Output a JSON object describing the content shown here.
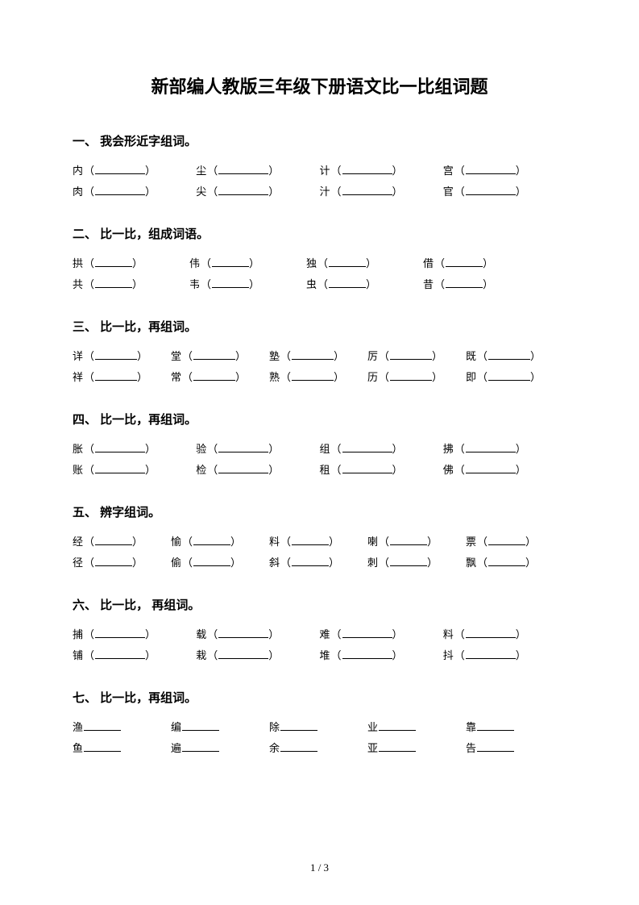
{
  "title": "新部编人教版三年级下册语文比一比组词题",
  "footer": "1 / 3",
  "blank_border_color": "#000000",
  "text_color": "#000000",
  "background_color": "#ffffff",
  "title_fontsize": 22,
  "body_fontsize": 13,
  "head_fontsize": 15,
  "sections": [
    {
      "head": "一、 我会形近字组词。",
      "cls": "s1",
      "blank": "blank-w1",
      "paren": true,
      "rows": [
        [
          "内",
          "尘",
          "计",
          "宫"
        ],
        [
          "肉",
          "尖",
          "汁",
          "官"
        ]
      ]
    },
    {
      "head": "二、 比一比，组成词语。",
      "cls": "s2",
      "blank": "blank-w2",
      "paren": true,
      "rows": [
        [
          "拱",
          "伟",
          "独",
          "借"
        ],
        [
          "共",
          "韦",
          "虫",
          "昔"
        ]
      ]
    },
    {
      "head": "三、 比一比，再组词。",
      "cls": "s3",
      "blank": "blank-w3",
      "paren": true,
      "rows": [
        [
          "详",
          "堂",
          "塾",
          "厉",
          "既"
        ],
        [
          "祥",
          "常",
          "熟",
          "历",
          "即"
        ]
      ]
    },
    {
      "head": "四、 比一比，再组词。",
      "cls": "s4",
      "blank": "blank-w4",
      "paren": true,
      "rows": [
        [
          "胀",
          "验",
          "组",
          "拂"
        ],
        [
          "账",
          "检",
          "租",
          "佛"
        ]
      ]
    },
    {
      "head": "五、 辨字组词。",
      "cls": "s5",
      "blank": "blank-w5",
      "paren": true,
      "rows": [
        [
          "经",
          "愉",
          "料",
          "喇",
          "票"
        ],
        [
          "径",
          "偷",
          "斜",
          "刺",
          "飘"
        ]
      ]
    },
    {
      "head": "六、 比一比， 再组词。",
      "cls": "s6",
      "blank": "blank-w6",
      "paren": true,
      "rows": [
        [
          "捕",
          "载",
          "难",
          "料"
        ],
        [
          "铺",
          "栽",
          "堆",
          "抖"
        ]
      ]
    },
    {
      "head": "七、 比一比，再组词。",
      "cls": "s7",
      "blank": "blank-w7",
      "paren": false,
      "rows": [
        [
          "渔",
          "编",
          "除",
          "业",
          "靠"
        ],
        [
          "鱼",
          "遍",
          "余",
          "亚",
          "告"
        ]
      ]
    }
  ]
}
